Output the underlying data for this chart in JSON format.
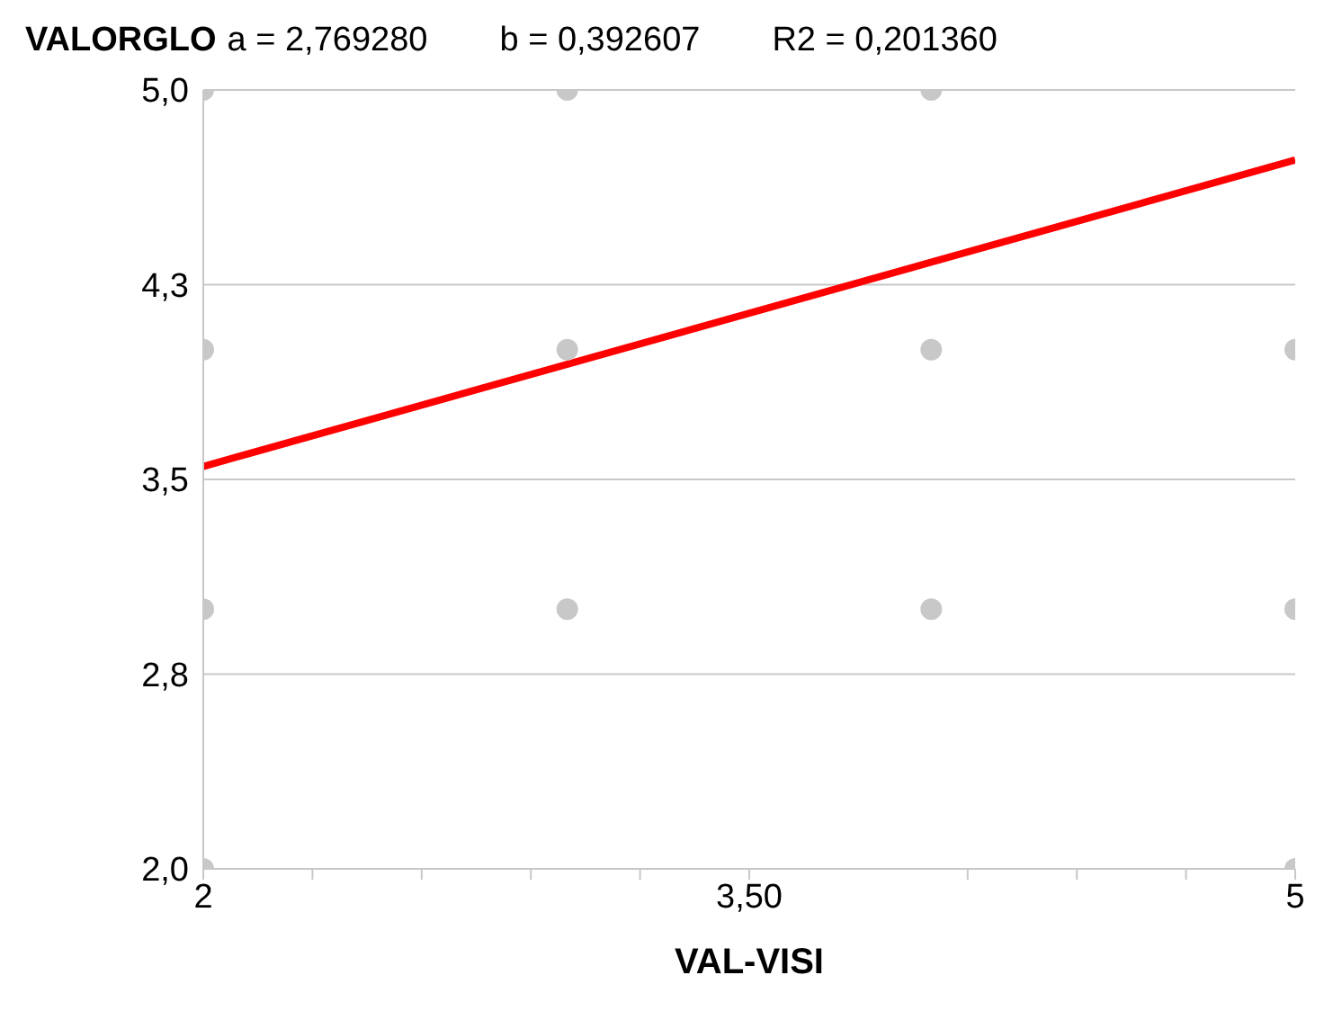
{
  "chart_data": {
    "type": "scatter",
    "ylabel": "VALORGLO",
    "xlabel": "VAL-VISI",
    "annotations": [
      "a = 2,769280",
      "b = 0,392607",
      "R2 = 0,201360"
    ],
    "series": [
      {
        "color": "#c8c8c8",
        "x": [
          2,
          2,
          2,
          2,
          3,
          3,
          3,
          4,
          4,
          4,
          5,
          5,
          5
        ],
        "values": [
          5,
          4,
          3,
          2,
          5,
          4,
          3,
          5,
          4,
          3,
          4,
          3,
          2
        ]
      },
      {
        "type": "line",
        "color": "#ff0000",
        "x": [
          2,
          5
        ],
        "values": [
          3.55,
          4.73
        ],
        "marker": "none"
      }
    ],
    "marker": "circle",
    "xlim": [
      2,
      5
    ],
    "xticks": [
      2,
      {
        "value": 2.3,
        "label": null
      },
      {
        "value": 2.6,
        "label": null
      },
      {
        "value": 2.9,
        "label": null
      },
      {
        "value": 3.2,
        "label": null
      },
      {
        "value": 3.5,
        "label": "3,50"
      },
      {
        "value": 4.1,
        "label": null
      },
      {
        "value": 4.4,
        "label": null
      },
      {
        "value": 4.7,
        "label": null
      },
      5
    ],
    "ylim": [
      2,
      5
    ],
    "yticks": [
      {
        "value": 2,
        "label": "2,0"
      },
      {
        "value": 2.75,
        "label": "2,8"
      },
      {
        "value": 3.5,
        "label": "3,5"
      },
      {
        "value": 4.25,
        "label": "4,3"
      },
      {
        "value": 5,
        "label": "5,0"
      }
    ],
    "grid": "y",
    "legend": false
  }
}
